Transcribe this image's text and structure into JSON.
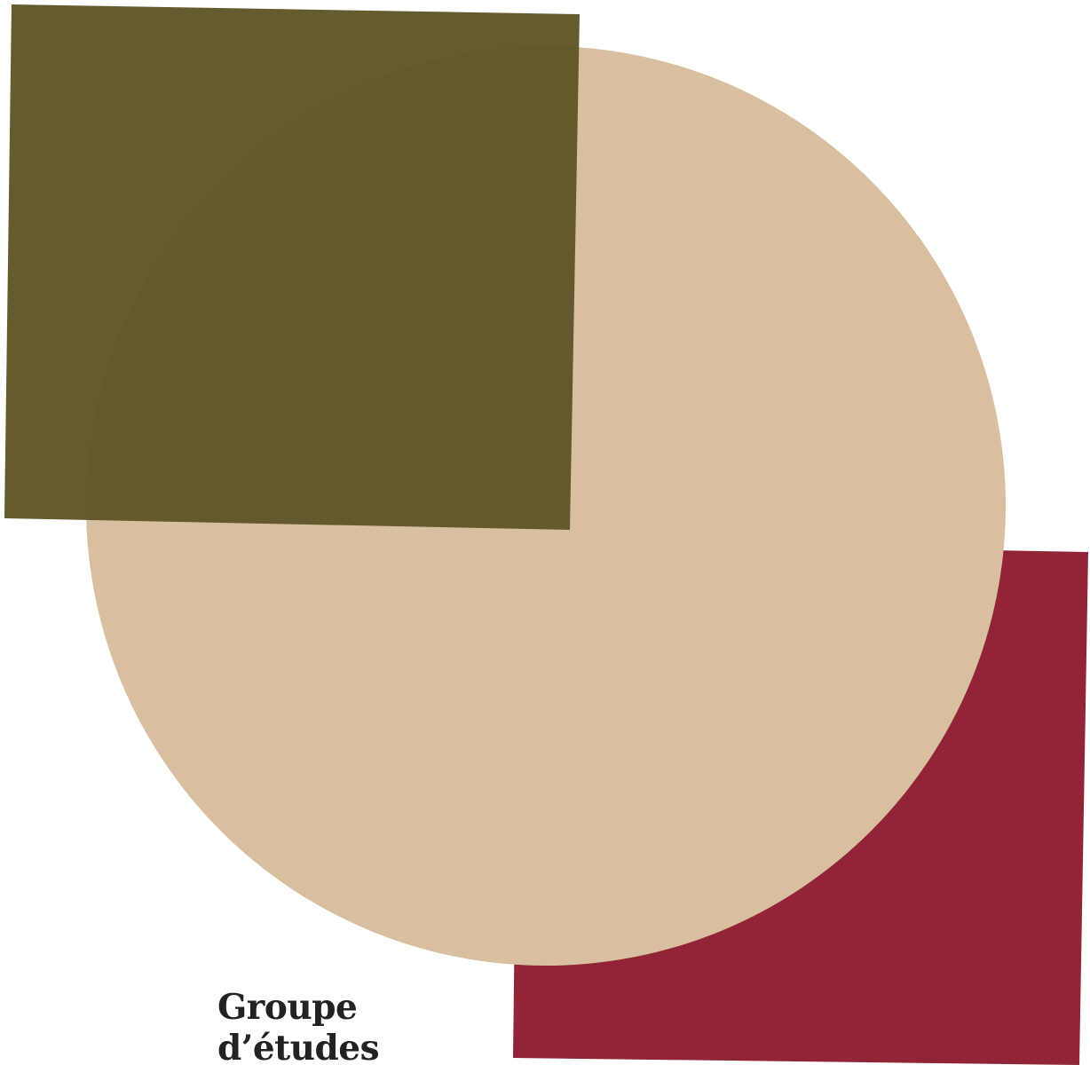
{
  "colors": {
    "olive": "#5f5628",
    "tan": "#d8bf9f",
    "crimson": "#922437",
    "text": "#222222",
    "background": "#ffffff"
  },
  "caption": {
    "line1": "Groupe",
    "line2": "d’études"
  }
}
